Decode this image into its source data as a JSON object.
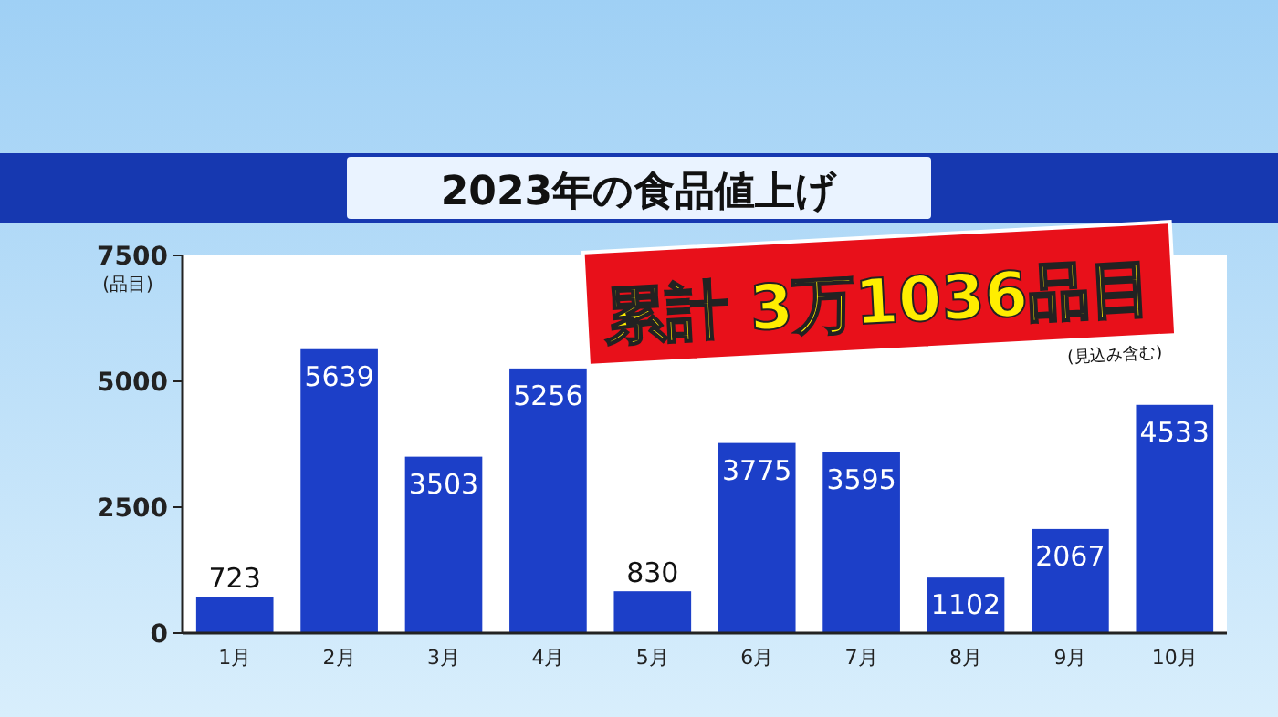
{
  "chart_data": {
    "type": "bar",
    "title": "2023年の食品値上げ",
    "ylabel": "(品目)",
    "categories": [
      "1月",
      "2月",
      "3月",
      "4月",
      "5月",
      "6月",
      "7月",
      "8月",
      "9月",
      "10月"
    ],
    "values": [
      723,
      5639,
      3503,
      5256,
      830,
      3775,
      3595,
      1102,
      2067,
      4533
    ],
    "color": "#1c3fc8",
    "ylim": [
      0,
      7500
    ],
    "yticks": [
      0,
      2500,
      5000,
      7500
    ],
    "data_labels": true,
    "annotations": [
      "累計 3万1036品目",
      "(見込み含む)"
    ]
  }
}
